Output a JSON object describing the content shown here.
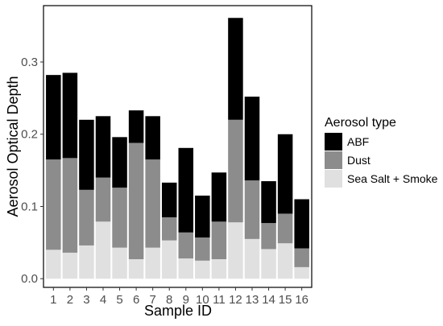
{
  "chart_data": {
    "type": "bar",
    "stacked": true,
    "title": "",
    "xlabel": "Sample ID",
    "ylabel": "Aerosol Optical Depth",
    "categories": [
      "1",
      "2",
      "3",
      "4",
      "5",
      "6",
      "7",
      "8",
      "9",
      "10",
      "11",
      "12",
      "13",
      "14",
      "15",
      "16"
    ],
    "ylim": [
      -0.012,
      0.378
    ],
    "yticks": [
      0.0,
      0.1,
      0.2,
      0.3
    ],
    "ytick_labels": [
      "0.0",
      "0.1",
      "0.2",
      "0.3"
    ],
    "grid": false,
    "legend": {
      "title": "Aerosol type",
      "placement": "right"
    },
    "series": [
      {
        "name": "Sea Salt + Smoke",
        "color": "#e0e0e0",
        "values": [
          0.04,
          0.036,
          0.046,
          0.079,
          0.043,
          0.027,
          0.043,
          0.053,
          0.028,
          0.025,
          0.027,
          0.078,
          0.055,
          0.041,
          0.049,
          0.016
        ]
      },
      {
        "name": "Dust",
        "color": "#8c8c8c",
        "values": [
          0.125,
          0.131,
          0.077,
          0.061,
          0.083,
          0.161,
          0.122,
          0.032,
          0.036,
          0.032,
          0.052,
          0.142,
          0.081,
          0.036,
          0.041,
          0.026
        ]
      },
      {
        "name": "ABF",
        "color": "#000000",
        "values": [
          0.117,
          0.118,
          0.097,
          0.085,
          0.07,
          0.045,
          0.06,
          0.048,
          0.117,
          0.058,
          0.068,
          0.141,
          0.116,
          0.058,
          0.11,
          0.068
        ]
      }
    ],
    "legend_order": [
      "ABF",
      "Dust",
      "Sea Salt + Smoke"
    ]
  }
}
